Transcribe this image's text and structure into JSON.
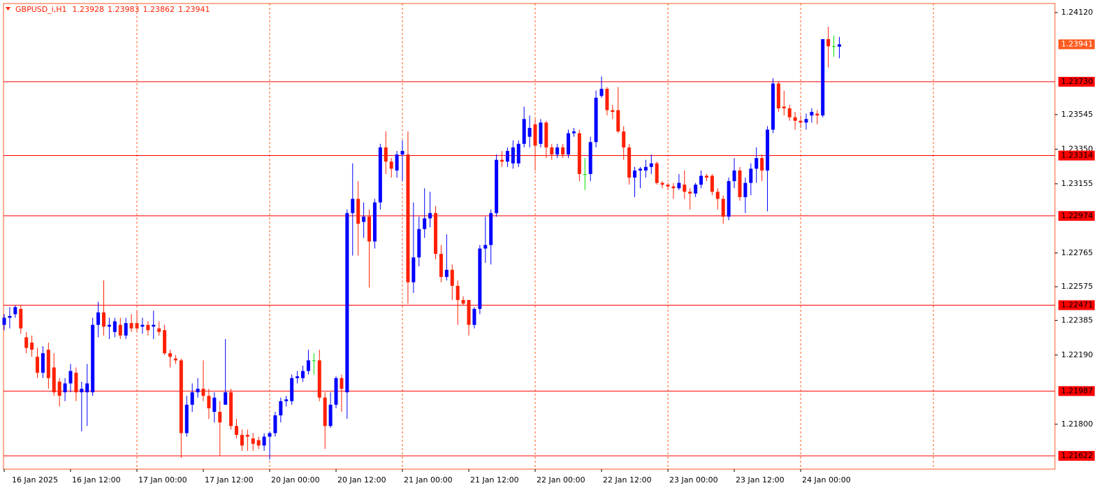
{
  "chart_data": {
    "type": "candlestick",
    "symbol": "GBPUSD_i,H1",
    "categories": [
      "16 Jan 2025",
      null,
      null,
      null,
      null,
      null,
      null,
      null,
      null,
      null,
      null,
      null,
      "16 Jan 12:00",
      null,
      null,
      null,
      null,
      null,
      null,
      null,
      null,
      null,
      null,
      null,
      "17 Jan 00:00",
      null,
      null,
      null,
      null,
      null,
      null,
      null,
      null,
      null,
      null,
      null,
      "17 Jan 12:00",
      null,
      null,
      null,
      null,
      null,
      null,
      null,
      null,
      null,
      null,
      null,
      "20 Jan 00:00",
      null,
      null,
      null,
      null,
      null,
      null,
      null,
      null,
      null,
      null,
      null,
      "20 Jan 12:00",
      null,
      null,
      null,
      null,
      null,
      null,
      null,
      null,
      null,
      null,
      null,
      "21 Jan 00:00",
      null,
      null,
      null,
      null,
      null,
      null,
      null,
      null,
      null,
      null,
      null,
      "21 Jan 12:00",
      null,
      null,
      null,
      null,
      null,
      null,
      null,
      null,
      null,
      null,
      null,
      "22 Jan 00:00",
      null,
      null,
      null,
      null,
      null,
      null,
      null,
      null,
      null,
      null,
      null,
      "22 Jan 12:00",
      null,
      null,
      null,
      null,
      null,
      null,
      null,
      null,
      null,
      null,
      null,
      "23 Jan 00:00",
      null,
      null,
      null,
      null,
      null,
      null,
      null,
      null,
      null,
      null,
      null,
      "23 Jan 12:00",
      null,
      null,
      null,
      null,
      null,
      null,
      null,
      null,
      null,
      null,
      null,
      "24 Jan 00:00",
      null,
      null,
      null,
      null,
      null,
      null,
      null
    ],
    "ohlc": [
      [
        1.2236,
        1.2242,
        1.2233,
        1.224
      ],
      [
        1.224,
        1.2246,
        1.2234,
        1.2241
      ],
      [
        1.2242,
        1.2247,
        1.224,
        1.2246
      ],
      [
        1.2245,
        1.2247,
        1.2231,
        1.2234
      ],
      [
        1.2229,
        1.2232,
        1.222,
        1.2223
      ],
      [
        1.2226,
        1.223,
        1.2218,
        1.2222
      ],
      [
        1.2218,
        1.2223,
        1.2206,
        1.2209
      ],
      [
        1.2209,
        1.2224,
        1.2206,
        1.222
      ],
      [
        1.2222,
        1.2226,
        1.22,
        1.2206
      ],
      [
        1.2212,
        1.222,
        1.2196,
        1.2198
      ],
      [
        1.2204,
        1.2206,
        1.219,
        1.2196
      ],
      [
        1.2198,
        1.2206,
        1.2193,
        1.2203
      ],
      [
        1.2203,
        1.2214,
        1.2198,
        1.221
      ],
      [
        1.2209,
        1.2212,
        1.2193,
        1.2198
      ],
      [
        1.2198,
        1.2204,
        1.2176,
        1.22
      ],
      [
        1.2198,
        1.2214,
        1.2179,
        1.2203
      ],
      [
        1.2198,
        1.224,
        1.2196,
        1.2236
      ],
      [
        1.2236,
        1.2249,
        1.2229,
        1.2243
      ],
      [
        1.2243,
        1.2261,
        1.223,
        1.2235
      ],
      [
        1.2235,
        1.224,
        1.2228,
        1.2236
      ],
      [
        1.2232,
        1.224,
        1.2229,
        1.2238
      ],
      [
        1.2236,
        1.224,
        1.2228,
        1.223
      ],
      [
        1.223,
        1.224,
        1.2228,
        1.2237
      ],
      [
        1.2237,
        1.2242,
        1.2232,
        1.2234
      ],
      [
        1.2237,
        1.2244,
        1.2232,
        1.2234
      ],
      [
        1.2235,
        1.224,
        1.2231,
        1.2236
      ],
      [
        1.2236,
        1.2238,
        1.223,
        1.2233
      ],
      [
        1.2235,
        1.2244,
        1.2228,
        1.2236
      ],
      [
        1.2234,
        1.2238,
        1.223,
        1.2232
      ],
      [
        1.2233,
        1.2236,
        1.2219,
        1.222
      ],
      [
        1.222,
        1.2222,
        1.2212,
        1.2218
      ],
      [
        1.2217,
        1.2219,
        1.2214,
        1.2216
      ],
      [
        1.2216,
        1.2217,
        1.2161,
        1.2175
      ],
      [
        1.2175,
        1.2196,
        1.2173,
        1.2191
      ],
      [
        1.2191,
        1.2203,
        1.2187,
        1.2198
      ],
      [
        1.2198,
        1.2206,
        1.2195,
        1.22
      ],
      [
        1.22,
        1.2216,
        1.2193,
        1.2196
      ],
      [
        1.2196,
        1.22,
        1.2183,
        1.2189
      ],
      [
        1.2187,
        1.2198,
        1.2181,
        1.2195
      ],
      [
        1.2187,
        1.2193,
        1.2162,
        1.2181
      ],
      [
        1.2191,
        1.2228,
        1.2191,
        1.2198
      ],
      [
        1.2198,
        1.22,
        1.2177,
        1.2179
      ],
      [
        1.2179,
        1.2183,
        1.2172,
        1.2174
      ],
      [
        1.2174,
        1.2177,
        1.2165,
        1.2168
      ],
      [
        1.2174,
        1.2177,
        1.2165,
        1.2173
      ],
      [
        1.2172,
        1.2175,
        1.2165,
        1.2169
      ],
      [
        1.2171,
        1.2173,
        1.2166,
        1.2168
      ],
      [
        1.2168,
        1.2175,
        1.2165,
        1.2173
      ],
      [
        1.2173,
        1.2176,
        1.216,
        1.2175
      ],
      [
        1.2175,
        1.2187,
        1.2173,
        1.2185
      ],
      [
        1.2185,
        1.2195,
        1.2181,
        1.2193
      ],
      [
        1.2193,
        1.2196,
        1.219,
        1.2194
      ],
      [
        1.2193,
        1.2208,
        1.2191,
        1.2206
      ],
      [
        1.2206,
        1.221,
        1.2203,
        1.2207
      ],
      [
        1.2206,
        1.2213,
        1.2204,
        1.221
      ],
      [
        1.221,
        1.2222,
        1.2208,
        1.2216
      ],
      [
        1.2216,
        1.222,
        1.2208,
        1.2216
      ],
      [
        1.2216,
        1.2222,
        1.2193,
        1.2195
      ],
      [
        1.2195,
        1.2198,
        1.2166,
        1.2179
      ],
      [
        1.2179,
        1.2198,
        1.2178,
        1.2191
      ],
      [
        1.2191,
        1.2207,
        1.2189,
        1.2206
      ],
      [
        1.2206,
        1.2208,
        1.2187,
        1.22
      ],
      [
        1.2198,
        1.2301,
        1.2183,
        1.2299
      ],
      [
        1.2299,
        1.2327,
        1.2275,
        1.2307
      ],
      [
        1.2307,
        1.2317,
        1.2275,
        1.2293
      ],
      [
        1.2294,
        1.2305,
        1.2285,
        1.2297
      ],
      [
        1.2297,
        1.2301,
        1.2257,
        1.2283
      ],
      [
        1.2283,
        1.2307,
        1.2279,
        1.2305
      ],
      [
        1.2305,
        1.2338,
        1.2301,
        1.2336
      ],
      [
        1.2336,
        1.2345,
        1.2321,
        1.2328
      ],
      [
        1.2328,
        1.233,
        1.2319,
        1.2324
      ],
      [
        1.2323,
        1.2334,
        1.2319,
        1.2332
      ],
      [
        1.2332,
        1.234,
        1.2317,
        1.2334
      ],
      [
        1.2332,
        1.2345,
        1.2248,
        1.226
      ],
      [
        1.226,
        1.2305,
        1.2254,
        1.2274
      ],
      [
        1.2274,
        1.2297,
        1.2269,
        1.229
      ],
      [
        1.229,
        1.2313,
        1.2285,
        1.2296
      ],
      [
        1.2296,
        1.2311,
        1.2291,
        1.2299
      ],
      [
        1.2299,
        1.2303,
        1.2273,
        1.2276
      ],
      [
        1.2276,
        1.2281,
        1.226,
        1.2263
      ],
      [
        1.2263,
        1.2287,
        1.2261,
        1.2267
      ],
      [
        1.2267,
        1.227,
        1.225,
        1.2258
      ],
      [
        1.2258,
        1.2261,
        1.2236,
        1.225
      ],
      [
        1.225,
        1.2252,
        1.2247,
        1.2248
      ],
      [
        1.225,
        1.225,
        1.223,
        1.2236
      ],
      [
        1.2236,
        1.2246,
        1.2234,
        1.2245
      ],
      [
        1.2245,
        1.2281,
        1.2242,
        1.2279
      ],
      [
        1.2279,
        1.2297,
        1.2271,
        1.2281
      ],
      [
        1.2281,
        1.2301,
        1.227,
        1.2299
      ],
      [
        1.2299,
        1.2332,
        1.2297,
        1.2329
      ],
      [
        1.2329,
        1.2334,
        1.2325,
        1.2328
      ],
      [
        1.2328,
        1.2336,
        1.2325,
        1.2334
      ],
      [
        1.2327,
        1.234,
        1.2324,
        1.2336
      ],
      [
        1.2327,
        1.234,
        1.2325,
        1.2338
      ],
      [
        1.2338,
        1.2359,
        1.2336,
        1.2352
      ],
      [
        1.2342,
        1.2354,
        1.2336,
        1.2347
      ],
      [
        1.2349,
        1.2352,
        1.2323,
        1.2337
      ],
      [
        1.2338,
        1.2352,
        1.2336,
        1.235
      ],
      [
        1.235,
        1.2351,
        1.233,
        1.2336
      ],
      [
        1.2336,
        1.2338,
        1.2329,
        1.2332
      ],
      [
        1.2332,
        1.2338,
        1.233,
        1.2336
      ],
      [
        1.2336,
        1.2338,
        1.233,
        1.2332
      ],
      [
        1.2332,
        1.2346,
        1.233,
        1.2344
      ],
      [
        1.2344,
        1.2347,
        1.2342,
        1.2345
      ],
      [
        1.2344,
        1.2346,
        1.2317,
        1.2321
      ],
      [
        1.2321,
        1.233,
        1.2312,
        1.2321
      ],
      [
        1.2321,
        1.2342,
        1.2317,
        1.2339
      ],
      [
        1.2339,
        1.2368,
        1.2336,
        1.2364
      ],
      [
        1.2365,
        1.2376,
        1.2364,
        1.2369
      ],
      [
        1.2369,
        1.237,
        1.2354,
        1.2357
      ],
      [
        1.2357,
        1.236,
        1.2352,
        1.2356
      ],
      [
        1.2357,
        1.237,
        1.2344,
        1.2345
      ],
      [
        1.2345,
        1.2348,
        1.2329,
        1.2336
      ],
      [
        1.2336,
        1.2338,
        1.2315,
        1.2319
      ],
      [
        1.2319,
        1.2325,
        1.2308,
        1.2323
      ],
      [
        1.2323,
        1.2325,
        1.2313,
        1.2324
      ],
      [
        1.2323,
        1.2329,
        1.2319,
        1.2325
      ],
      [
        1.2325,
        1.2332,
        1.2321,
        1.2327
      ],
      [
        1.2327,
        1.2328,
        1.2315,
        1.2316
      ],
      [
        1.2316,
        1.2317,
        1.2313,
        1.2315
      ],
      [
        1.2315,
        1.2316,
        1.2312,
        1.2314
      ],
      [
        1.2314,
        1.2316,
        1.2307,
        1.2313
      ],
      [
        1.2313,
        1.2321,
        1.2312,
        1.2316
      ],
      [
        1.2315,
        1.2323,
        1.2307,
        1.2311
      ],
      [
        1.2311,
        1.2313,
        1.2301,
        1.231
      ],
      [
        1.231,
        1.2316,
        1.2308,
        1.2315
      ],
      [
        1.2315,
        1.2323,
        1.2313,
        1.232
      ],
      [
        1.232,
        1.2321,
        1.2317,
        1.2319
      ],
      [
        1.232,
        1.2321,
        1.2309,
        1.2311
      ],
      [
        1.2311,
        1.2313,
        1.2301,
        1.2307
      ],
      [
        1.2307,
        1.2309,
        1.2293,
        1.2297
      ],
      [
        1.2297,
        1.2319,
        1.2295,
        1.2317
      ],
      [
        1.2317,
        1.233,
        1.2313,
        1.2323
      ],
      [
        1.2323,
        1.2325,
        1.2306,
        1.2308
      ],
      [
        1.2308,
        1.2319,
        1.2299,
        1.2316
      ],
      [
        1.2316,
        1.2327,
        1.2309,
        1.2324
      ],
      [
        1.2324,
        1.2336,
        1.2316,
        1.233
      ],
      [
        1.233,
        1.2332,
        1.2317,
        1.2323
      ],
      [
        1.2323,
        1.2348,
        1.23,
        1.2346
      ],
      [
        1.2346,
        1.2375,
        1.2344,
        1.2372
      ],
      [
        1.2372,
        1.2373,
        1.2356,
        1.2358
      ],
      [
        1.2359,
        1.2368,
        1.2354,
        1.2358
      ],
      [
        1.2358,
        1.236,
        1.2351,
        1.2353
      ],
      [
        1.2353,
        1.2356,
        1.2346,
        1.2351
      ],
      [
        1.2351,
        1.2354,
        1.2347,
        1.235
      ],
      [
        1.235,
        1.2355,
        1.2346,
        1.2352
      ],
      [
        1.2354,
        1.2358,
        1.235,
        1.2356
      ],
      [
        1.2355,
        1.2357,
        1.2349,
        1.2354
      ],
      [
        1.2354,
        1.2397,
        1.2353,
        1.2397
      ],
      [
        1.2397,
        1.2404,
        1.2381,
        1.2393
      ],
      [
        1.2393,
        1.2399,
        1.2387,
        1.2393
      ],
      [
        1.23928,
        1.23983,
        1.23862,
        1.23941
      ]
    ],
    "ylim": [
      1.21547,
      1.24171
    ],
    "yticks": [
      {
        "value": 1.2412,
        "label": "1.24120"
      },
      1.23545,
      {
        "value": 1.2335,
        "label": "1.23350"
      },
      1.23155,
      1.22765,
      1.22575,
      1.22385,
      {
        "value": 1.2219,
        "label": "1.22190"
      },
      {
        "value": 1.218,
        "label": "1.21800"
      }
    ],
    "levels": [
      {
        "value": 1.2373,
        "label": "1.23730"
      },
      1.23314,
      1.22974,
      1.22471,
      1.21987,
      1.21622
    ],
    "up_color": "#0000ff",
    "down_color": "#ff2000",
    "doji_color": "#00e000",
    "level_color": "#ff0000",
    "grid": true,
    "grid_color": "#ff5a1f",
    "last_price_color": "#ff5a1f"
  }
}
